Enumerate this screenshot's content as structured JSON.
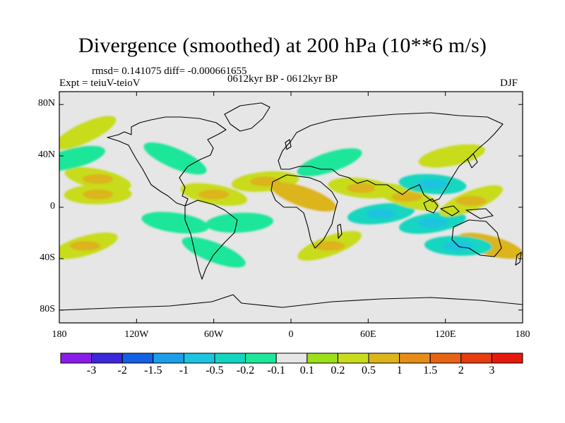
{
  "title": "Divergence (smoothed) at 200 hPa (10**6 m/s)",
  "stats": "rmsd= 0.141075  diff= -0.000661655",
  "experiment": "Expt = teiuV-teioV",
  "period": "0612kyr BP - 0612kyr BP",
  "season": "DJF",
  "lat_ticks": [
    "80N",
    "40N",
    "0",
    "40S",
    "80S"
  ],
  "lon_ticks": [
    "180",
    "120W",
    "60W",
    "0",
    "60E",
    "120E",
    "180"
  ],
  "colorbar": {
    "labels": [
      "-3",
      "-2",
      "-1.5",
      "-1",
      "-0.5",
      "-0.2",
      "-0.1",
      "0.1",
      "0.2",
      "0.5",
      "1",
      "1.5",
      "2",
      "3"
    ],
    "colors": [
      "#8a1ee8",
      "#3c28d8",
      "#1460e0",
      "#1c9ee8",
      "#1cc4e0",
      "#14d6c0",
      "#1ee69a",
      "#e6e6e6",
      "#9ce01a",
      "#c8dc1c",
      "#dcb41c",
      "#e68c18",
      "#e66414",
      "#e63c10",
      "#e61a0c"
    ]
  },
  "chart_data": {
    "type": "heatmap",
    "title": "Divergence (smoothed) at 200 hPa (10**6 m/s)",
    "variable": "Divergence (smoothed) at 200 hPa",
    "units": "10**6 m/s",
    "season": "DJF",
    "x_range": [
      -180,
      180
    ],
    "y_range": [
      -90,
      90
    ],
    "levels": [
      -3,
      -2,
      -1.5,
      -1,
      -0.5,
      -0.2,
      -0.1,
      0.1,
      0.2,
      0.5,
      1,
      1.5,
      2,
      3
    ],
    "features": [
      {
        "lon": -160,
        "lat": 58,
        "value": 0.2
      },
      {
        "lon": -150,
        "lat": 22,
        "value": 0.3
      },
      {
        "lon": -150,
        "lat": 10,
        "value": 0.3
      },
      {
        "lon": -170,
        "lat": 38,
        "value": -0.15
      },
      {
        "lon": -90,
        "lat": 38,
        "value": -0.2
      },
      {
        "lon": -60,
        "lat": 10,
        "value": 0.3
      },
      {
        "lon": -40,
        "lat": -12,
        "value": -0.2
      },
      {
        "lon": -160,
        "lat": -30,
        "value": 0.3
      },
      {
        "lon": -60,
        "lat": -35,
        "value": -0.2
      },
      {
        "lon": -90,
        "lat": -12,
        "value": -0.2
      },
      {
        "lon": -20,
        "lat": 20,
        "value": 0.3
      },
      {
        "lon": 30,
        "lat": 35,
        "value": -0.2
      },
      {
        "lon": 10,
        "lat": 8,
        "value": 0.5
      },
      {
        "lon": 55,
        "lat": 15,
        "value": 0.3
      },
      {
        "lon": 70,
        "lat": -5,
        "value": -0.4
      },
      {
        "lon": 30,
        "lat": -30,
        "value": 0.3
      },
      {
        "lon": 90,
        "lat": 8,
        "value": 0.3
      },
      {
        "lon": 110,
        "lat": 18,
        "value": -0.4
      },
      {
        "lon": 110,
        "lat": -12,
        "value": -0.5
      },
      {
        "lon": 140,
        "lat": 5,
        "value": 0.3
      },
      {
        "lon": 155,
        "lat": -30,
        "value": 0.6
      },
      {
        "lon": 130,
        "lat": -30,
        "value": -0.3
      },
      {
        "lon": 125,
        "lat": 40,
        "value": 0.2
      }
    ]
  }
}
